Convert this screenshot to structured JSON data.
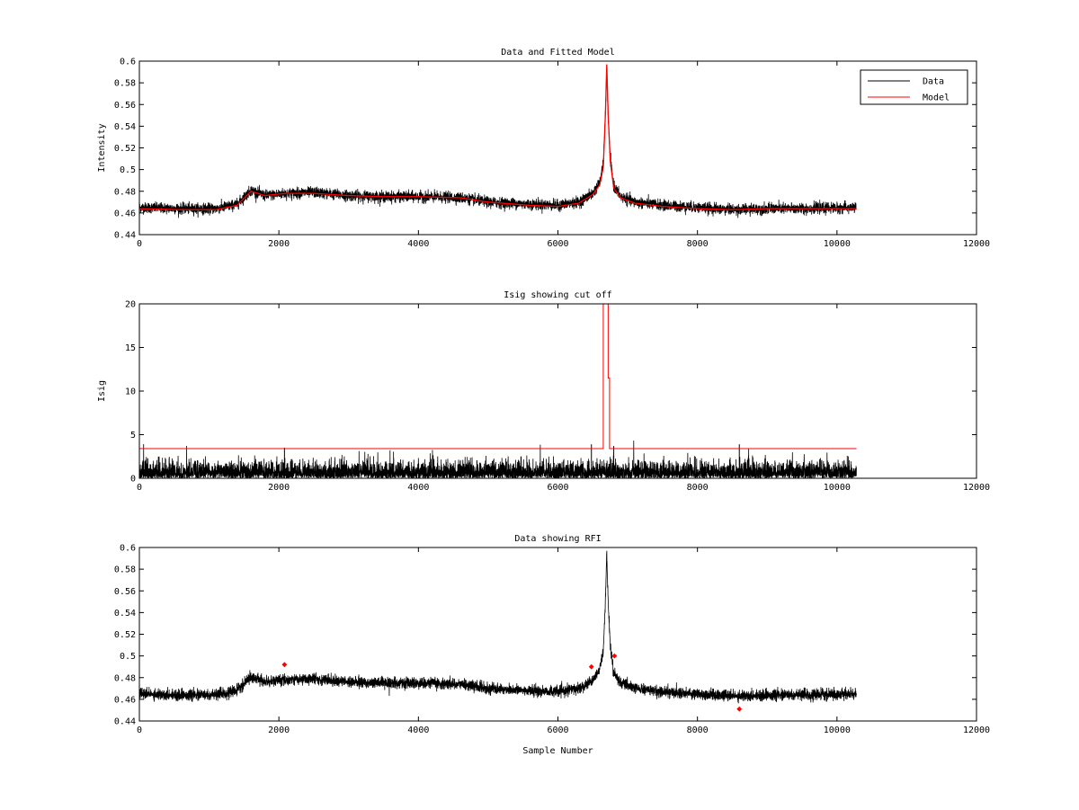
{
  "chart_data": [
    {
      "type": "line",
      "title": "Data and Fitted Model",
      "xlabel": "",
      "ylabel": "Intensity",
      "xlim": [
        0,
        12000
      ],
      "ylim": [
        0.44,
        0.6
      ],
      "xticks": [
        0,
        2000,
        4000,
        6000,
        8000,
        10000,
        12000
      ],
      "yticks": [
        0.44,
        0.46,
        0.48,
        0.5,
        0.52,
        0.54,
        0.56,
        0.58,
        0.6
      ],
      "ytick_labels": [
        "0.44",
        "0.46",
        "0.48",
        "0.5",
        "0.52",
        "0.54",
        "0.56",
        "0.58",
        "0.6"
      ],
      "legend": {
        "position": "top-right",
        "entries": [
          "Data",
          "Model"
        ]
      },
      "series": [
        {
          "name": "Data",
          "color": "#000000",
          "kind": "noisy",
          "noise": 0.0045,
          "x": [
            0,
            600,
            1100,
            1400,
            1600,
            1800,
            2100,
            2500,
            3000,
            3500,
            4000,
            4600,
            5000,
            5600,
            6000,
            6300,
            6500,
            6600,
            6650,
            6680,
            6700,
            6720,
            6750,
            6800,
            6900,
            7100,
            7500,
            8000,
            8500,
            9000,
            9500,
            10280
          ],
          "y": [
            0.465,
            0.464,
            0.464,
            0.468,
            0.481,
            0.476,
            0.478,
            0.479,
            0.476,
            0.475,
            0.475,
            0.474,
            0.47,
            0.468,
            0.467,
            0.47,
            0.478,
            0.488,
            0.505,
            0.55,
            0.595,
            0.55,
            0.51,
            0.485,
            0.475,
            0.47,
            0.467,
            0.465,
            0.463,
            0.464,
            0.464,
            0.465
          ]
        },
        {
          "name": "Model",
          "color": "#ff0000",
          "kind": "smooth",
          "x": [
            0,
            600,
            1100,
            1400,
            1600,
            1800,
            2100,
            2500,
            3000,
            3500,
            4000,
            4600,
            5000,
            5600,
            6000,
            6300,
            6500,
            6600,
            6650,
            6680,
            6700,
            6720,
            6750,
            6800,
            6900,
            7100,
            7500,
            8000,
            8500,
            9000,
            9500,
            10280
          ],
          "y": [
            0.464,
            0.463,
            0.463,
            0.467,
            0.48,
            0.476,
            0.478,
            0.478,
            0.476,
            0.475,
            0.475,
            0.474,
            0.47,
            0.467,
            0.466,
            0.469,
            0.477,
            0.486,
            0.502,
            0.55,
            0.597,
            0.55,
            0.508,
            0.483,
            0.474,
            0.469,
            0.466,
            0.464,
            0.463,
            0.464,
            0.464,
            0.464
          ]
        }
      ]
    },
    {
      "type": "line",
      "title": "Isig showing cut off",
      "xlabel": "",
      "ylabel": "Isig",
      "xlim": [
        0,
        12000
      ],
      "ylim": [
        0,
        20
      ],
      "xticks": [
        0,
        2000,
        4000,
        6000,
        8000,
        10000,
        12000
      ],
      "yticks": [
        0,
        5,
        10,
        15,
        20
      ],
      "ytick_labels": [
        "0",
        "5",
        "10",
        "15",
        "20"
      ],
      "series": [
        {
          "name": "Isig",
          "color": "#000000",
          "kind": "abs-noise",
          "noise": 0.9,
          "x": [
            0,
            10280
          ],
          "y": [
            0,
            0
          ],
          "spikes": [
            [
              2080,
              3.5
            ],
            [
              6480,
              3.9
            ],
            [
              6800,
              3.7
            ],
            [
              8600,
              3.9
            ]
          ]
        },
        {
          "name": "Cut off",
          "color": "#ff0000",
          "kind": "step",
          "x": [
            0,
            6650,
            6650,
            6720,
            6720,
            6740,
            6740,
            10280
          ],
          "y": [
            3.4,
            3.4,
            20,
            20,
            11.5,
            11.5,
            3.4,
            3.4
          ]
        }
      ]
    },
    {
      "type": "line",
      "title": "Data showing RFI",
      "xlabel": "Sample Number",
      "ylabel": "",
      "xlim": [
        0,
        12000
      ],
      "ylim": [
        0.44,
        0.6
      ],
      "xticks": [
        0,
        2000,
        4000,
        6000,
        8000,
        10000,
        12000
      ],
      "yticks": [
        0.44,
        0.46,
        0.48,
        0.5,
        0.52,
        0.54,
        0.56,
        0.58,
        0.6
      ],
      "ytick_labels": [
        "0.44",
        "0.46",
        "0.48",
        "0.5",
        "0.52",
        "0.54",
        "0.56",
        "0.58",
        "0.6"
      ],
      "series": [
        {
          "name": "Data",
          "color": "#000000",
          "kind": "noisy",
          "noise": 0.0045,
          "x": [
            0,
            600,
            1100,
            1400,
            1600,
            1800,
            2100,
            2500,
            3000,
            3500,
            4000,
            4600,
            5000,
            5600,
            6000,
            6300,
            6500,
            6600,
            6650,
            6680,
            6700,
            6720,
            6750,
            6800,
            6900,
            7100,
            7500,
            8000,
            8500,
            9000,
            9500,
            10280
          ],
          "y": [
            0.465,
            0.464,
            0.464,
            0.468,
            0.481,
            0.476,
            0.478,
            0.479,
            0.476,
            0.475,
            0.475,
            0.474,
            0.47,
            0.468,
            0.467,
            0.47,
            0.478,
            0.488,
            0.505,
            0.55,
            0.595,
            0.55,
            0.51,
            0.485,
            0.475,
            0.47,
            0.467,
            0.465,
            0.463,
            0.464,
            0.464,
            0.465
          ]
        },
        {
          "name": "RFI",
          "color": "#ff0000",
          "kind": "markers",
          "x": [
            2080,
            6480,
            6810,
            8600
          ],
          "y": [
            0.492,
            0.49,
            0.5,
            0.451
          ]
        }
      ]
    }
  ]
}
